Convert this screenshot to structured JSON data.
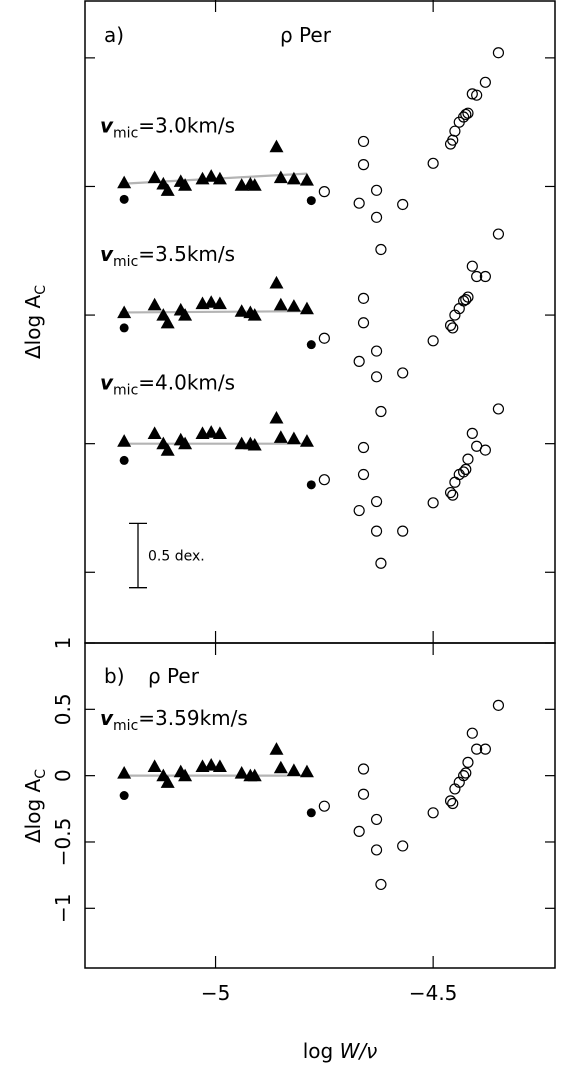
{
  "chart_data": [
    {
      "panel": "a",
      "type": "scatter",
      "panel_label": "a)",
      "star_name": "ρ Per",
      "ylabel": "Δlog A_C",
      "xlabel": "log W/ν",
      "xlim": [
        -5.3,
        -4.22
      ],
      "ylim": [
        -1.55,
        3.45
      ],
      "y_tick_labels_shown": false,
      "scale_bar": {
        "label": "0.5 dex.",
        "size": 0.5
      },
      "series": [
        {
          "label": "v_mic=3.0km/s",
          "offset": 2,
          "triangles": [
            [
              -5.21,
              0.03
            ],
            [
              -5.14,
              0.07
            ],
            [
              -5.12,
              0.02
            ],
            [
              -5.11,
              -0.03
            ],
            [
              -5.08,
              0.04
            ],
            [
              -5.07,
              0.01
            ],
            [
              -5.03,
              0.06
            ],
            [
              -5.01,
              0.08
            ],
            [
              -4.99,
              0.06
            ],
            [
              -4.94,
              0.01
            ],
            [
              -4.92,
              0.02
            ],
            [
              -4.91,
              0.01
            ],
            [
              -4.86,
              0.31
            ],
            [
              -4.85,
              0.07
            ],
            [
              -4.82,
              0.06
            ],
            [
              -4.79,
              0.05
            ]
          ],
          "filled_circles": [
            [
              -5.21,
              -0.1
            ],
            [
              -4.78,
              -0.11
            ]
          ],
          "open_circles": [
            [
              -4.75,
              -0.04
            ],
            [
              -4.67,
              -0.13
            ],
            [
              -4.66,
              0.35
            ],
            [
              -4.66,
              0.17
            ],
            [
              -4.63,
              -0.03
            ],
            [
              -4.63,
              -0.24
            ],
            [
              -4.62,
              -0.49
            ],
            [
              -4.57,
              -0.14
            ],
            [
              -4.5,
              0.18
            ],
            [
              -4.46,
              0.33
            ],
            [
              -4.455,
              0.36
            ],
            [
              -4.45,
              0.43
            ],
            [
              -4.44,
              0.5
            ],
            [
              -4.43,
              0.54
            ],
            [
              -4.425,
              0.56
            ],
            [
              -4.42,
              0.57
            ],
            [
              -4.41,
              0.72
            ],
            [
              -4.4,
              0.71
            ],
            [
              -4.38,
              0.81
            ],
            [
              -4.35,
              1.04
            ]
          ],
          "fit_line": [
            [
              -5.22,
              0.02
            ],
            [
              -4.79,
              0.1
            ]
          ]
        },
        {
          "label": "v_mic=3.5km/s",
          "offset": 1,
          "triangles": [
            [
              -5.21,
              0.02
            ],
            [
              -5.14,
              0.08
            ],
            [
              -5.12,
              0.0
            ],
            [
              -5.11,
              -0.06
            ],
            [
              -5.08,
              0.04
            ],
            [
              -5.07,
              0.0
            ],
            [
              -5.03,
              0.09
            ],
            [
              -5.01,
              0.1
            ],
            [
              -4.99,
              0.09
            ],
            [
              -4.94,
              0.03
            ],
            [
              -4.92,
              0.02
            ],
            [
              -4.91,
              0.0
            ],
            [
              -4.86,
              0.25
            ],
            [
              -4.85,
              0.08
            ],
            [
              -4.82,
              0.07
            ],
            [
              -4.79,
              0.05
            ]
          ],
          "filled_circles": [
            [
              -5.21,
              -0.1
            ],
            [
              -4.78,
              -0.23
            ]
          ],
          "open_circles": [
            [
              -4.75,
              -0.18
            ],
            [
              -4.67,
              -0.36
            ],
            [
              -4.66,
              0.13
            ],
            [
              -4.66,
              -0.06
            ],
            [
              -4.63,
              -0.28
            ],
            [
              -4.63,
              -0.48
            ],
            [
              -4.62,
              -0.75
            ],
            [
              -4.57,
              -0.45
            ],
            [
              -4.5,
              -0.2
            ],
            [
              -4.46,
              -0.08
            ],
            [
              -4.455,
              -0.1
            ],
            [
              -4.45,
              0.0
            ],
            [
              -4.44,
              0.05
            ],
            [
              -4.43,
              0.11
            ],
            [
              -4.425,
              0.12
            ],
            [
              -4.42,
              0.14
            ],
            [
              -4.41,
              0.38
            ],
            [
              -4.4,
              0.3
            ],
            [
              -4.38,
              0.3
            ],
            [
              -4.35,
              0.63
            ]
          ],
          "fit_line": [
            [
              -5.22,
              0.02
            ],
            [
              -4.79,
              0.03
            ]
          ]
        },
        {
          "label": "v_mic=4.0km/s",
          "offset": 0,
          "triangles": [
            [
              -5.21,
              0.02
            ],
            [
              -5.14,
              0.08
            ],
            [
              -5.12,
              0.0
            ],
            [
              -5.11,
              -0.05
            ],
            [
              -5.08,
              0.03
            ],
            [
              -5.07,
              0.0
            ],
            [
              -5.03,
              0.08
            ],
            [
              -5.01,
              0.09
            ],
            [
              -4.99,
              0.08
            ],
            [
              -4.94,
              0.0
            ],
            [
              -4.92,
              0.0
            ],
            [
              -4.91,
              -0.01
            ],
            [
              -4.86,
              0.2
            ],
            [
              -4.85,
              0.05
            ],
            [
              -4.82,
              0.04
            ],
            [
              -4.79,
              0.02
            ]
          ],
          "filled_circles": [
            [
              -5.21,
              -0.13
            ],
            [
              -4.78,
              -0.32
            ]
          ],
          "open_circles": [
            [
              -4.75,
              -0.28
            ],
            [
              -4.67,
              -0.52
            ],
            [
              -4.66,
              -0.03
            ],
            [
              -4.66,
              -0.24
            ],
            [
              -4.63,
              -0.45
            ],
            [
              -4.63,
              -0.68
            ],
            [
              -4.62,
              -0.93
            ],
            [
              -4.57,
              -0.68
            ],
            [
              -4.5,
              -0.46
            ],
            [
              -4.46,
              -0.38
            ],
            [
              -4.455,
              -0.4
            ],
            [
              -4.45,
              -0.3
            ],
            [
              -4.44,
              -0.24
            ],
            [
              -4.43,
              -0.22
            ],
            [
              -4.425,
              -0.2
            ],
            [
              -4.42,
              -0.12
            ],
            [
              -4.41,
              0.08
            ],
            [
              -4.4,
              -0.02
            ],
            [
              -4.38,
              -0.05
            ],
            [
              -4.35,
              0.27
            ]
          ],
          "fit_line": [
            [
              -5.22,
              0.0
            ],
            [
              -4.79,
              0.0
            ]
          ]
        }
      ]
    },
    {
      "panel": "b",
      "type": "scatter",
      "panel_label": "b)",
      "star_name": "ρ Per",
      "ylabel": "Δlog A_C",
      "xlabel": "log W/ν",
      "xlim": [
        -5.3,
        -4.22
      ],
      "ylim": [
        -1.45,
        1.0
      ],
      "y_ticks": [
        -1,
        -0.5,
        0,
        0.5,
        1
      ],
      "y_tick_labels": [
        "−1",
        "−0.5",
        "0",
        "0.5",
        "1"
      ],
      "x_ticks": [
        -5,
        -4.5
      ],
      "x_tick_labels": [
        "−5",
        "−4.5"
      ],
      "series": [
        {
          "label": "v_mic=3.59km/s",
          "triangles": [
            [
              -5.21,
              0.02
            ],
            [
              -5.14,
              0.07
            ],
            [
              -5.12,
              0.0
            ],
            [
              -5.11,
              -0.05
            ],
            [
              -5.08,
              0.03
            ],
            [
              -5.07,
              0.0
            ],
            [
              -5.03,
              0.07
            ],
            [
              -5.01,
              0.08
            ],
            [
              -4.99,
              0.07
            ],
            [
              -4.94,
              0.02
            ],
            [
              -4.92,
              0.0
            ],
            [
              -4.91,
              0.0
            ],
            [
              -4.86,
              0.2
            ],
            [
              -4.85,
              0.06
            ],
            [
              -4.82,
              0.04
            ],
            [
              -4.79,
              0.03
            ]
          ],
          "filled_circles": [
            [
              -5.21,
              -0.15
            ],
            [
              -4.78,
              -0.28
            ]
          ],
          "open_circles": [
            [
              -4.75,
              -0.23
            ],
            [
              -4.67,
              -0.42
            ],
            [
              -4.66,
              0.05
            ],
            [
              -4.66,
              -0.14
            ],
            [
              -4.63,
              -0.33
            ],
            [
              -4.63,
              -0.56
            ],
            [
              -4.62,
              -0.82
            ],
            [
              -4.57,
              -0.53
            ],
            [
              -4.5,
              -0.28
            ],
            [
              -4.46,
              -0.19
            ],
            [
              -4.455,
              -0.21
            ],
            [
              -4.45,
              -0.1
            ],
            [
              -4.44,
              -0.05
            ],
            [
              -4.43,
              0.0
            ],
            [
              -4.425,
              0.02
            ],
            [
              -4.42,
              0.1
            ],
            [
              -4.41,
              0.32
            ],
            [
              -4.4,
              0.2
            ],
            [
              -4.38,
              0.2
            ],
            [
              -4.35,
              0.53
            ]
          ],
          "fit_line": [
            [
              -5.22,
              0.0
            ],
            [
              -4.79,
              0.0
            ]
          ]
        }
      ]
    }
  ]
}
